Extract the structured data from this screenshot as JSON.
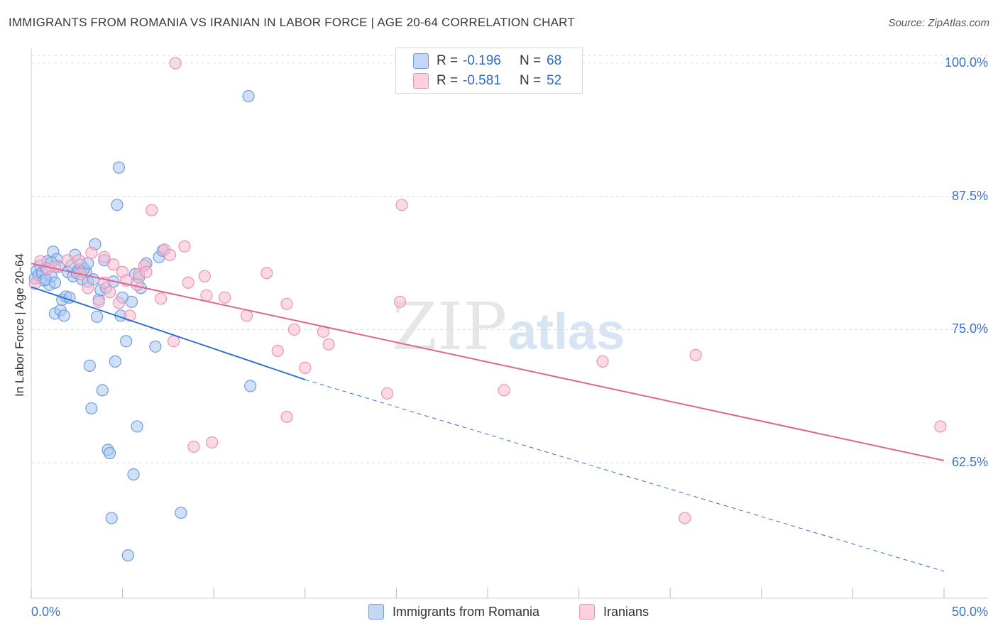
{
  "title": "IMMIGRANTS FROM ROMANIA VS IRANIAN IN LABOR FORCE | AGE 20-64 CORRELATION CHART",
  "source": "Source: ZipAtlas.com",
  "watermark": {
    "zip": "ZIP",
    "atlas": "atlas"
  },
  "legend_stats": {
    "romania": {
      "r_label": "R =",
      "r_value": "-0.196",
      "n_label": "N =",
      "n_value": "68"
    },
    "iranians": {
      "r_label": "R =",
      "r_value": "-0.581",
      "n_label": "N =",
      "n_value": "52"
    }
  },
  "colors": {
    "romania_fill": "#aac8f0",
    "romania_stroke": "#6f9be0",
    "romania_line": "#2f72d1",
    "iranians_fill": "#f7bcd0",
    "iranians_stroke": "#eb93b2",
    "iranians_line": "#e2648f",
    "tick_color": "#3b74c7",
    "grid": "#dcdcdc"
  },
  "chart_data": {
    "type": "scatter",
    "ylabel": "In Labor Force | Age 20-64",
    "xlabel": "",
    "xlim": [
      0,
      50
    ],
    "ylim": [
      52.5,
      103
    ],
    "y_ticks": [
      {
        "value": 100.0,
        "label": "100.0%"
      },
      {
        "value": 87.5,
        "label": "87.5%"
      },
      {
        "value": 75.0,
        "label": "75.0%"
      },
      {
        "value": 62.5,
        "label": "62.5%"
      }
    ],
    "x_tick_labels": [
      {
        "value": 0,
        "label": "0.0%"
      },
      {
        "value": 50,
        "label": "50.0%"
      }
    ],
    "x_minor_ticks": [
      0,
      5,
      10,
      15,
      20,
      25,
      30,
      35,
      40,
      45,
      50
    ],
    "grid": true,
    "legend_position": "bottom-center",
    "series": [
      {
        "name": "Immigrants from Romania",
        "color": "#aac8f0",
        "points": [
          [
            0.2,
            79.8
          ],
          [
            0.3,
            80.5
          ],
          [
            0.4,
            80.1
          ],
          [
            0.5,
            81.0
          ],
          [
            0.6,
            80.3
          ],
          [
            0.7,
            79.6
          ],
          [
            0.8,
            80.8
          ],
          [
            0.9,
            81.4
          ],
          [
            1.0,
            79.2
          ],
          [
            1.1,
            80.0
          ],
          [
            1.2,
            82.3
          ],
          [
            1.3,
            76.5
          ],
          [
            1.4,
            81.6
          ],
          [
            1.5,
            80.9
          ],
          [
            1.6,
            76.8
          ],
          [
            1.7,
            77.8
          ],
          [
            1.8,
            76.3
          ],
          [
            1.9,
            78.1
          ],
          [
            2.0,
            80.4
          ],
          [
            2.1,
            78.0
          ],
          [
            2.2,
            81.0
          ],
          [
            2.3,
            80.0
          ],
          [
            2.4,
            82.0
          ],
          [
            2.5,
            80.3
          ],
          [
            2.6,
            80.6
          ],
          [
            2.7,
            81.1
          ],
          [
            2.8,
            79.7
          ],
          [
            3.0,
            80.4
          ],
          [
            3.1,
            79.5
          ],
          [
            3.2,
            71.6
          ],
          [
            3.3,
            67.6
          ],
          [
            3.4,
            79.7
          ],
          [
            3.5,
            83.0
          ],
          [
            3.6,
            76.2
          ],
          [
            3.7,
            77.8
          ],
          [
            3.8,
            78.7
          ],
          [
            3.9,
            69.3
          ],
          [
            4.0,
            81.5
          ],
          [
            4.1,
            78.9
          ],
          [
            4.2,
            63.7
          ],
          [
            4.3,
            63.4
          ],
          [
            4.4,
            57.3
          ],
          [
            4.5,
            79.5
          ],
          [
            4.6,
            72.0
          ],
          [
            4.7,
            86.7
          ],
          [
            4.8,
            90.2
          ],
          [
            4.9,
            76.3
          ],
          [
            5.0,
            78.0
          ],
          [
            5.2,
            73.9
          ],
          [
            5.3,
            53.8
          ],
          [
            5.5,
            77.6
          ],
          [
            5.6,
            61.4
          ],
          [
            5.7,
            80.2
          ],
          [
            5.8,
            65.9
          ],
          [
            5.9,
            79.9
          ],
          [
            6.0,
            78.9
          ],
          [
            6.3,
            81.2
          ],
          [
            6.8,
            73.4
          ],
          [
            7.0,
            81.8
          ],
          [
            8.2,
            57.8
          ],
          [
            11.9,
            96.9
          ],
          [
            12.0,
            69.7
          ],
          [
            7.2,
            82.4
          ],
          [
            1.1,
            81.3
          ],
          [
            2.9,
            80.7
          ],
          [
            0.8,
            79.7
          ],
          [
            3.1,
            81.2
          ],
          [
            1.3,
            79.4
          ]
        ]
      },
      {
        "name": "Iranians",
        "color": "#f7bcd0",
        "points": [
          [
            0.2,
            79.3
          ],
          [
            0.5,
            81.4
          ],
          [
            0.9,
            80.7
          ],
          [
            1.3,
            80.9
          ],
          [
            2.0,
            81.5
          ],
          [
            2.6,
            81.5
          ],
          [
            3.1,
            78.9
          ],
          [
            3.3,
            82.2
          ],
          [
            3.7,
            77.6
          ],
          [
            4.0,
            79.4
          ],
          [
            4.3,
            78.5
          ],
          [
            4.5,
            81.1
          ],
          [
            4.8,
            77.5
          ],
          [
            5.0,
            80.4
          ],
          [
            5.2,
            79.6
          ],
          [
            5.4,
            76.3
          ],
          [
            5.8,
            79.2
          ],
          [
            5.9,
            80.2
          ],
          [
            6.2,
            81.0
          ],
          [
            6.6,
            86.2
          ],
          [
            7.1,
            77.9
          ],
          [
            7.3,
            82.5
          ],
          [
            7.6,
            82.0
          ],
          [
            7.8,
            73.9
          ],
          [
            8.4,
            82.8
          ],
          [
            8.6,
            79.4
          ],
          [
            8.9,
            64.0
          ],
          [
            9.5,
            80.0
          ],
          [
            9.6,
            78.2
          ],
          [
            9.9,
            64.4
          ],
          [
            10.6,
            78.0
          ],
          [
            11.8,
            76.3
          ],
          [
            12.9,
            80.3
          ],
          [
            13.5,
            73.0
          ],
          [
            14.0,
            77.4
          ],
          [
            14.0,
            66.8
          ],
          [
            14.4,
            75.0
          ],
          [
            15.0,
            71.4
          ],
          [
            16.0,
            74.8
          ],
          [
            16.3,
            73.6
          ],
          [
            19.5,
            69.0
          ],
          [
            20.2,
            77.6
          ],
          [
            20.3,
            86.7
          ],
          [
            25.9,
            69.3
          ],
          [
            31.3,
            72.0
          ],
          [
            36.4,
            72.6
          ],
          [
            35.8,
            57.3
          ],
          [
            49.8,
            65.9
          ],
          [
            7.9,
            100.0
          ],
          [
            4.0,
            81.8
          ],
          [
            6.3,
            80.4
          ],
          [
            2.7,
            80.2
          ]
        ]
      }
    ],
    "trend_lines": [
      {
        "series": "Immigrants from Romania",
        "x1": 0,
        "y1": 79.0,
        "x2": 15,
        "y2": 70.3,
        "dashed_to_x": 50,
        "dashed_to_y": 52.3
      },
      {
        "series": "Iranians",
        "x1": 0,
        "y1": 81.2,
        "x2": 50,
        "y2": 62.7
      }
    ]
  }
}
